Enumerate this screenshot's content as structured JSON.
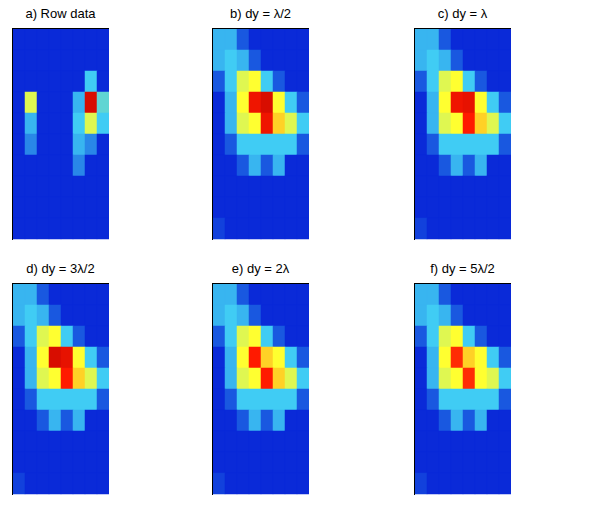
{
  "chart_data": [
    {
      "type": "heatmap",
      "title": "a) Row data",
      "tick_labels": false,
      "zlim": [
        0,
        1
      ],
      "cells": [
        [
          0,
          0,
          0,
          0,
          0,
          0,
          0,
          0
        ],
        [
          0,
          0,
          0,
          0,
          0,
          0,
          0,
          0
        ],
        [
          0,
          0,
          0,
          0,
          0,
          0,
          0.35,
          0
        ],
        [
          0,
          0.6,
          0,
          0,
          0,
          0.3,
          0.95,
          0.4
        ],
        [
          0,
          0.3,
          0,
          0,
          0,
          0.35,
          0.6,
          0.35
        ],
        [
          0,
          0.2,
          0,
          0,
          0,
          0.3,
          0.2,
          0
        ],
        [
          0,
          0,
          0,
          0,
          0,
          0.2,
          0,
          0
        ],
        [
          0,
          0,
          0,
          0,
          0,
          0,
          0,
          0
        ],
        [
          0,
          0,
          0,
          0,
          0,
          0,
          0,
          0
        ],
        [
          0,
          0,
          0,
          0,
          0,
          0,
          0,
          0
        ]
      ]
    },
    {
      "type": "heatmap",
      "title": "b) dy = λ/2",
      "tick_labels": false,
      "zlim": [
        0,
        1
      ],
      "cells": [
        [
          0.3,
          0.3,
          0.1,
          0,
          0,
          0,
          0,
          0
        ],
        [
          0.3,
          0.35,
          0.3,
          0.1,
          0,
          0,
          0,
          0
        ],
        [
          0.1,
          0.35,
          0.6,
          0.65,
          0.35,
          0.1,
          0,
          0
        ],
        [
          0,
          0.3,
          0.65,
          0.92,
          0.95,
          0.65,
          0.35,
          0.1
        ],
        [
          0,
          0.3,
          0.6,
          0.65,
          0.92,
          0.7,
          0.6,
          0.35
        ],
        [
          0,
          0.1,
          0.35,
          0.35,
          0.35,
          0.35,
          0.35,
          0.1
        ],
        [
          0,
          0,
          0.1,
          0.3,
          0.1,
          0.3,
          0,
          0
        ],
        [
          0,
          0,
          0,
          0,
          0,
          0,
          0,
          0
        ],
        [
          0,
          0,
          0,
          0,
          0,
          0,
          0,
          0
        ],
        [
          0.05,
          0,
          0,
          0,
          0,
          0,
          0,
          0
        ]
      ]
    },
    {
      "type": "heatmap",
      "title": "c) dy = λ",
      "tick_labels": false,
      "zlim": [
        0,
        1
      ],
      "cells": [
        [
          0.3,
          0.3,
          0.1,
          0,
          0,
          0,
          0,
          0
        ],
        [
          0.3,
          0.35,
          0.3,
          0.1,
          0,
          0,
          0,
          0
        ],
        [
          0.1,
          0.35,
          0.6,
          0.65,
          0.35,
          0.1,
          0,
          0
        ],
        [
          0,
          0.3,
          0.65,
          0.92,
          0.93,
          0.65,
          0.35,
          0.1
        ],
        [
          0,
          0.3,
          0.6,
          0.65,
          0.9,
          0.7,
          0.6,
          0.35
        ],
        [
          0,
          0.1,
          0.35,
          0.35,
          0.35,
          0.35,
          0.35,
          0.1
        ],
        [
          0,
          0,
          0.1,
          0.3,
          0.1,
          0.3,
          0,
          0
        ],
        [
          0,
          0,
          0,
          0,
          0,
          0,
          0,
          0
        ],
        [
          0,
          0,
          0,
          0,
          0,
          0,
          0,
          0
        ],
        [
          0.05,
          0,
          0,
          0,
          0,
          0,
          0,
          0
        ]
      ]
    },
    {
      "type": "heatmap",
      "title": "d) dy = 3λ/2",
      "tick_labels": false,
      "zlim": [
        0,
        1
      ],
      "cells": [
        [
          0.3,
          0.3,
          0.1,
          0,
          0,
          0,
          0,
          0
        ],
        [
          0.3,
          0.35,
          0.3,
          0.1,
          0,
          0,
          0,
          0
        ],
        [
          0.1,
          0.35,
          0.6,
          0.65,
          0.35,
          0.1,
          0,
          0
        ],
        [
          0,
          0.3,
          0.65,
          0.95,
          0.93,
          0.65,
          0.35,
          0.1
        ],
        [
          0,
          0.3,
          0.6,
          0.65,
          0.9,
          0.7,
          0.6,
          0.35
        ],
        [
          0,
          0.1,
          0.35,
          0.35,
          0.35,
          0.35,
          0.35,
          0.1
        ],
        [
          0,
          0,
          0.1,
          0.3,
          0.1,
          0.3,
          0,
          0
        ],
        [
          0,
          0,
          0,
          0,
          0,
          0,
          0,
          0
        ],
        [
          0,
          0,
          0,
          0,
          0,
          0,
          0,
          0
        ],
        [
          0.05,
          0,
          0,
          0,
          0,
          0,
          0,
          0
        ]
      ]
    },
    {
      "type": "heatmap",
      "title": "e) dy = 2λ",
      "tick_labels": false,
      "zlim": [
        0,
        1
      ],
      "cells": [
        [
          0.3,
          0.3,
          0.1,
          0,
          0,
          0,
          0,
          0
        ],
        [
          0.3,
          0.35,
          0.3,
          0.1,
          0,
          0,
          0,
          0
        ],
        [
          0.1,
          0.35,
          0.6,
          0.65,
          0.35,
          0.1,
          0,
          0
        ],
        [
          0,
          0.3,
          0.65,
          0.9,
          0.7,
          0.65,
          0.35,
          0.1
        ],
        [
          0,
          0.3,
          0.6,
          0.65,
          0.9,
          0.7,
          0.6,
          0.35
        ],
        [
          0,
          0.1,
          0.35,
          0.35,
          0.35,
          0.35,
          0.35,
          0.1
        ],
        [
          0,
          0,
          0.1,
          0.3,
          0.1,
          0.3,
          0,
          0
        ],
        [
          0,
          0,
          0,
          0,
          0,
          0,
          0,
          0
        ],
        [
          0,
          0,
          0,
          0,
          0,
          0,
          0,
          0
        ],
        [
          0.05,
          0,
          0,
          0,
          0,
          0,
          0,
          0
        ]
      ]
    },
    {
      "type": "heatmap",
      "title": "f) dy = 5λ/2",
      "tick_labels": false,
      "zlim": [
        0,
        1
      ],
      "cells": [
        [
          0.3,
          0.3,
          0.1,
          0,
          0,
          0,
          0,
          0
        ],
        [
          0.3,
          0.35,
          0.3,
          0.1,
          0,
          0,
          0,
          0
        ],
        [
          0.1,
          0.35,
          0.6,
          0.65,
          0.35,
          0.1,
          0,
          0
        ],
        [
          0,
          0.3,
          0.65,
          0.88,
          0.7,
          0.65,
          0.35,
          0.1
        ],
        [
          0,
          0.3,
          0.6,
          0.65,
          0.88,
          0.65,
          0.6,
          0.35
        ],
        [
          0,
          0.1,
          0.35,
          0.35,
          0.35,
          0.35,
          0.35,
          0.1
        ],
        [
          0,
          0,
          0.1,
          0.3,
          0.1,
          0.3,
          0,
          0
        ],
        [
          0,
          0,
          0,
          0,
          0,
          0,
          0,
          0
        ],
        [
          0,
          0,
          0,
          0,
          0,
          0,
          0,
          0
        ],
        [
          0.05,
          0,
          0,
          0,
          0,
          0,
          0,
          0
        ]
      ]
    }
  ]
}
